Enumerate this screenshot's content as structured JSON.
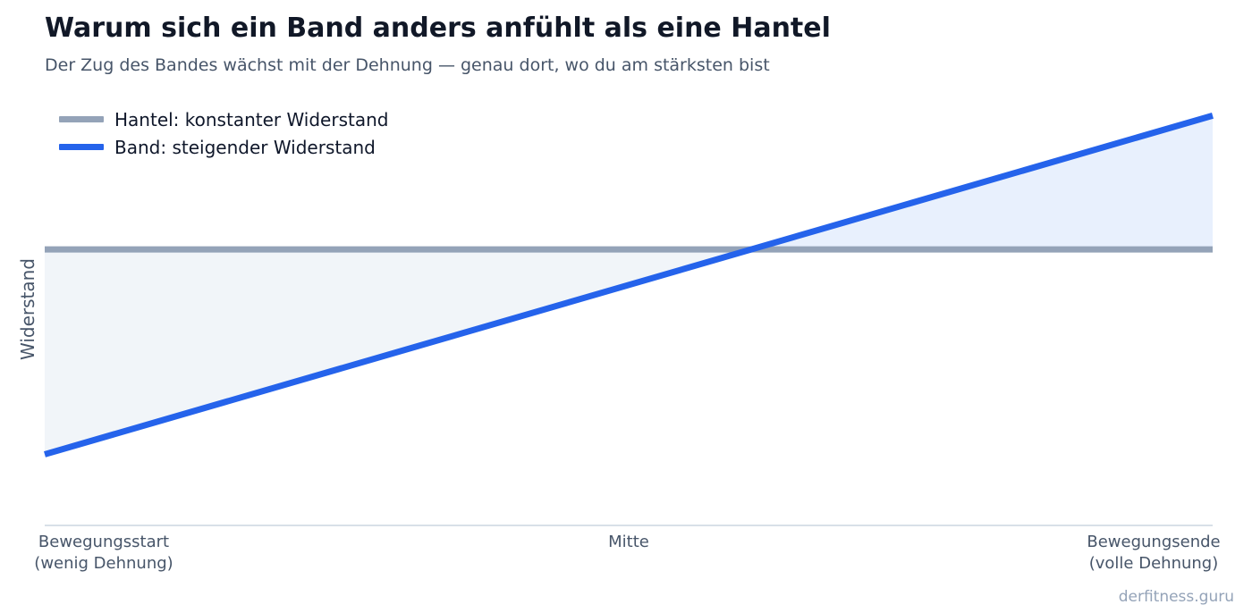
{
  "title": "Warum sich ein Band anders anfühlt als eine Hantel",
  "subtitle": "Der Zug des Bandes wächst mit der Dehnung — genau dort, wo du am stärksten bist",
  "watermark": "derfitness.guru",
  "chart_data": {
    "type": "line",
    "title": "Warum sich ein Band anders anfühlt als eine Hantel",
    "subtitle": "Der Zug des Bandes wächst mit der Dehnung — genau dort, wo du am stärksten bist",
    "xlabel": "",
    "ylabel": "Widerstand",
    "x": [
      0,
      1
    ],
    "xlim": [
      0,
      1
    ],
    "ylim": [
      0,
      1
    ],
    "x_ticks": [
      {
        "x": 0,
        "lines": [
          "Bewegungsstart",
          "(wenig Dehnung)"
        ]
      },
      {
        "x": 0.5,
        "lines": [
          "Mitte"
        ]
      },
      {
        "x": 1,
        "lines": [
          "Bewegungsende",
          "(volle Dehnung)"
        ]
      }
    ],
    "series": [
      {
        "name": "Hantel: konstanter Widerstand",
        "values": [
          0.66,
          0.66
        ],
        "color": "#94a3b8"
      },
      {
        "name": "Band: steigender Widerstand",
        "values": [
          0.17,
          0.98
        ],
        "color": "#2563eb"
      }
    ],
    "fills": {
      "below_crossing": "#f1f5f9",
      "above_crossing": "#e8f0fd"
    },
    "grid": false,
    "legend_position": "top-left",
    "y_tick_labels": false
  }
}
